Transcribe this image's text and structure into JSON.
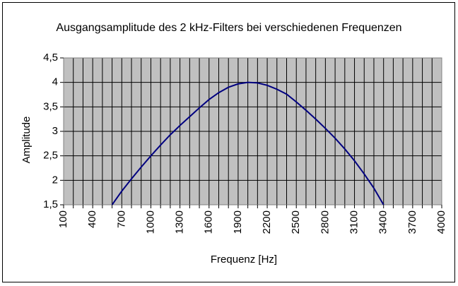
{
  "chart_data": {
    "type": "line",
    "title": "Ausgangsamplitude des 2 kHz-Filters bei verschiedenen Frequenzen",
    "x_label": "Frequenz [Hz]",
    "y_label": "Amplitude",
    "categories": [
      "100",
      null,
      null,
      "400",
      null,
      null,
      "700",
      null,
      null,
      "1000",
      null,
      null,
      "1300",
      null,
      null,
      "1600",
      null,
      null,
      "1900",
      null,
      null,
      "2200",
      null,
      null,
      "2500",
      null,
      null,
      "2800",
      null,
      null,
      "3100",
      null,
      null,
      "3400",
      null,
      null,
      "3700",
      null,
      null,
      "4000"
    ],
    "series": [
      {
        "name": "Amplitude",
        "color": "#000080",
        "values": [
          null,
          null,
          null,
          null,
          null,
          1.5,
          1.78,
          2.03,
          2.27,
          2.5,
          2.72,
          2.93,
          3.12,
          3.3,
          3.48,
          3.65,
          3.79,
          3.9,
          3.97,
          4.0,
          3.99,
          3.94,
          3.86,
          3.76,
          3.6,
          3.43,
          3.25,
          3.06,
          2.86,
          2.64,
          2.4,
          2.13,
          1.84,
          1.5,
          null,
          null,
          null,
          null,
          null,
          null
        ]
      }
    ],
    "ylim": [
      1.5,
      4.5
    ],
    "yticks": [
      {
        "value": 1.5,
        "label": "1,5"
      },
      2,
      {
        "value": 2.5,
        "label": "2,5"
      },
      3,
      {
        "value": 3.5,
        "label": "3,5"
      },
      4,
      {
        "value": 4.5,
        "label": "4,5"
      }
    ],
    "grid": true,
    "plot_background": "#c0c0c0"
  }
}
